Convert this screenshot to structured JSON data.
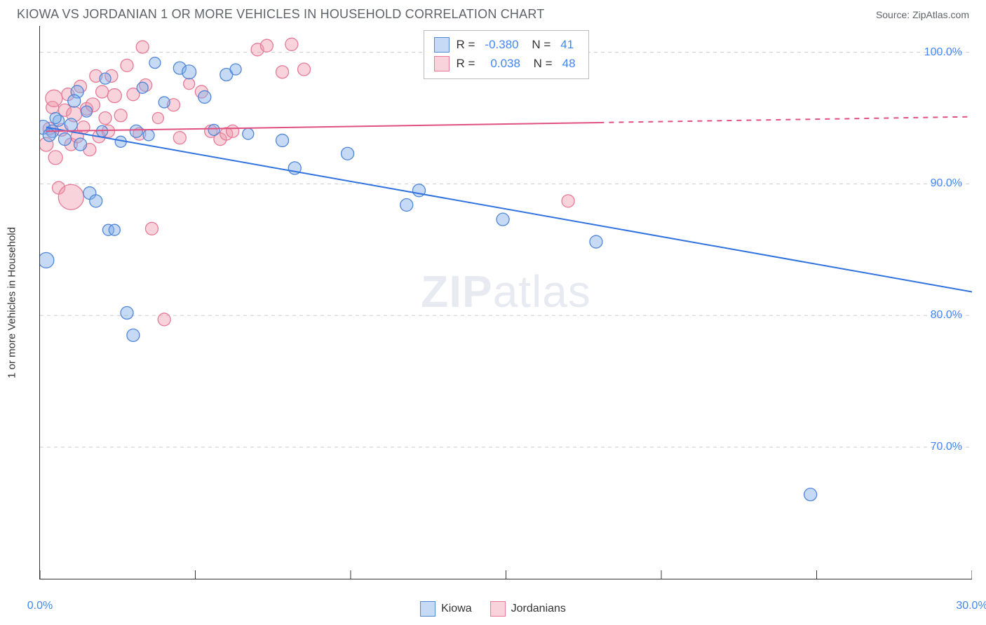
{
  "header": {
    "title": "KIOWA VS JORDANIAN 1 OR MORE VEHICLES IN HOUSEHOLD CORRELATION CHART",
    "source_label": "Source:",
    "source_name": "ZipAtlas.com"
  },
  "chart": {
    "type": "scatter",
    "y_axis_label": "1 or more Vehicles in Household",
    "x_domain": [
      0,
      30
    ],
    "y_domain": [
      60,
      102
    ],
    "x_ticks": [
      0,
      5,
      10,
      15,
      20,
      25,
      30
    ],
    "x_tick_labels": {
      "0": "0.0%",
      "30": "30.0%"
    },
    "y_ticks": [
      70,
      80,
      90,
      100
    ],
    "y_tick_labels": {
      "70": "70.0%",
      "80": "80.0%",
      "90": "90.0%",
      "100": "100.0%"
    },
    "grid_color": "#cccccc",
    "background_color": "#ffffff",
    "series": [
      {
        "name": "Kiowa",
        "fill": "rgba(128,172,232,0.45)",
        "stroke": "#4f86d6",
        "R": "-0.380",
        "N": "41",
        "trend": {
          "x1": 0.2,
          "y1": 94.3,
          "x2": 30,
          "y2": 81.8,
          "dashed_from_x": null,
          "color": "#2f72e0",
          "width": 2
        },
        "points": [
          {
            "x": 0.1,
            "y": 94.3,
            "r": 10
          },
          {
            "x": 0.4,
            "y": 94.0,
            "r": 9
          },
          {
            "x": 0.3,
            "y": 93.7,
            "r": 9
          },
          {
            "x": 0.6,
            "y": 94.8,
            "r": 8
          },
          {
            "x": 0.5,
            "y": 95.0,
            "r": 8
          },
          {
            "x": 0.8,
            "y": 93.4,
            "r": 9
          },
          {
            "x": 1.0,
            "y": 94.5,
            "r": 9
          },
          {
            "x": 1.2,
            "y": 97.0,
            "r": 9
          },
          {
            "x": 1.3,
            "y": 93.0,
            "r": 9
          },
          {
            "x": 1.5,
            "y": 95.5,
            "r": 8
          },
          {
            "x": 1.1,
            "y": 96.3,
            "r": 9
          },
          {
            "x": 1.6,
            "y": 89.3,
            "r": 9
          },
          {
            "x": 0.2,
            "y": 84.2,
            "r": 11
          },
          {
            "x": 1.8,
            "y": 88.7,
            "r": 9
          },
          {
            "x": 2.0,
            "y": 94.0,
            "r": 8
          },
          {
            "x": 2.2,
            "y": 86.5,
            "r": 8
          },
          {
            "x": 2.4,
            "y": 86.5,
            "r": 8
          },
          {
            "x": 2.6,
            "y": 93.2,
            "r": 8
          },
          {
            "x": 2.8,
            "y": 80.2,
            "r": 9
          },
          {
            "x": 3.0,
            "y": 78.5,
            "r": 9
          },
          {
            "x": 3.1,
            "y": 94.0,
            "r": 9
          },
          {
            "x": 3.3,
            "y": 97.3,
            "r": 8
          },
          {
            "x": 3.5,
            "y": 93.7,
            "r": 8
          },
          {
            "x": 3.7,
            "y": 99.2,
            "r": 8
          },
          {
            "x": 4.0,
            "y": 96.2,
            "r": 8
          },
          {
            "x": 4.5,
            "y": 98.8,
            "r": 9
          },
          {
            "x": 4.8,
            "y": 98.5,
            "r": 10
          },
          {
            "x": 5.3,
            "y": 96.6,
            "r": 9
          },
          {
            "x": 5.6,
            "y": 94.1,
            "r": 8
          },
          {
            "x": 6.0,
            "y": 98.3,
            "r": 9
          },
          {
            "x": 6.3,
            "y": 98.7,
            "r": 8
          },
          {
            "x": 7.8,
            "y": 93.3,
            "r": 9
          },
          {
            "x": 8.2,
            "y": 91.2,
            "r": 9
          },
          {
            "x": 9.9,
            "y": 92.3,
            "r": 9
          },
          {
            "x": 12.2,
            "y": 89.5,
            "r": 9
          },
          {
            "x": 11.8,
            "y": 88.4,
            "r": 9
          },
          {
            "x": 14.9,
            "y": 87.3,
            "r": 9
          },
          {
            "x": 17.9,
            "y": 85.6,
            "r": 9
          },
          {
            "x": 24.8,
            "y": 66.4,
            "r": 9
          },
          {
            "x": 6.7,
            "y": 93.8,
            "r": 8
          },
          {
            "x": 2.1,
            "y": 98.0,
            "r": 8
          }
        ]
      },
      {
        "name": "Jordanians",
        "fill": "rgba(240,150,170,0.42)",
        "stroke": "#e67a97",
        "R": "0.038",
        "N": "48",
        "trend": {
          "x1": 0.2,
          "y1": 94.0,
          "x2": 30,
          "y2": 95.1,
          "dashed_from_x": 18,
          "color": "#e05080",
          "width": 2
        },
        "points": [
          {
            "x": 0.2,
            "y": 93.0,
            "r": 10
          },
          {
            "x": 0.3,
            "y": 94.2,
            "r": 9
          },
          {
            "x": 0.4,
            "y": 95.8,
            "r": 9
          },
          {
            "x": 0.45,
            "y": 96.5,
            "r": 12
          },
          {
            "x": 0.5,
            "y": 92.0,
            "r": 10
          },
          {
            "x": 0.6,
            "y": 89.7,
            "r": 9
          },
          {
            "x": 0.7,
            "y": 94.1,
            "r": 9
          },
          {
            "x": 0.8,
            "y": 95.6,
            "r": 9
          },
          {
            "x": 0.9,
            "y": 96.8,
            "r": 9
          },
          {
            "x": 1.0,
            "y": 93.0,
            "r": 9
          },
          {
            "x": 1.0,
            "y": 89.0,
            "r": 18
          },
          {
            "x": 1.1,
            "y": 95.3,
            "r": 11
          },
          {
            "x": 1.2,
            "y": 93.6,
            "r": 9
          },
          {
            "x": 1.3,
            "y": 97.4,
            "r": 9
          },
          {
            "x": 1.4,
            "y": 94.3,
            "r": 9
          },
          {
            "x": 1.5,
            "y": 95.7,
            "r": 9
          },
          {
            "x": 1.6,
            "y": 92.6,
            "r": 9
          },
          {
            "x": 1.7,
            "y": 96.0,
            "r": 10
          },
          {
            "x": 1.8,
            "y": 98.2,
            "r": 9
          },
          {
            "x": 1.9,
            "y": 93.6,
            "r": 9
          },
          {
            "x": 2.0,
            "y": 97.0,
            "r": 9
          },
          {
            "x": 2.1,
            "y": 95.0,
            "r": 9
          },
          {
            "x": 2.2,
            "y": 94.0,
            "r": 9
          },
          {
            "x": 2.4,
            "y": 96.7,
            "r": 10
          },
          {
            "x": 2.6,
            "y": 95.2,
            "r": 9
          },
          {
            "x": 2.8,
            "y": 99.0,
            "r": 9
          },
          {
            "x": 3.0,
            "y": 96.8,
            "r": 9
          },
          {
            "x": 3.2,
            "y": 93.8,
            "r": 9
          },
          {
            "x": 3.3,
            "y": 100.4,
            "r": 9
          },
          {
            "x": 3.4,
            "y": 97.5,
            "r": 9
          },
          {
            "x": 3.6,
            "y": 86.6,
            "r": 9
          },
          {
            "x": 3.8,
            "y": 95.0,
            "r": 8
          },
          {
            "x": 4.0,
            "y": 79.7,
            "r": 9
          },
          {
            "x": 4.3,
            "y": 96.0,
            "r": 9
          },
          {
            "x": 4.5,
            "y": 93.5,
            "r": 9
          },
          {
            "x": 4.8,
            "y": 97.6,
            "r": 8
          },
          {
            "x": 5.2,
            "y": 97.0,
            "r": 9
          },
          {
            "x": 5.5,
            "y": 94.0,
            "r": 9
          },
          {
            "x": 5.8,
            "y": 93.4,
            "r": 9
          },
          {
            "x": 6.0,
            "y": 93.8,
            "r": 9
          },
          {
            "x": 6.2,
            "y": 94.0,
            "r": 9
          },
          {
            "x": 7.0,
            "y": 100.2,
            "r": 9
          },
          {
            "x": 7.3,
            "y": 100.5,
            "r": 9
          },
          {
            "x": 7.8,
            "y": 98.5,
            "r": 9
          },
          {
            "x": 8.1,
            "y": 100.6,
            "r": 9
          },
          {
            "x": 8.5,
            "y": 98.7,
            "r": 9
          },
          {
            "x": 17.0,
            "y": 88.7,
            "r": 9
          },
          {
            "x": 2.3,
            "y": 98.2,
            "r": 9
          }
        ]
      }
    ],
    "watermark": {
      "zip": "ZIP",
      "atlas": "atlas"
    },
    "legend": {
      "series1": "Kiowa",
      "series2": "Jordanians"
    }
  }
}
